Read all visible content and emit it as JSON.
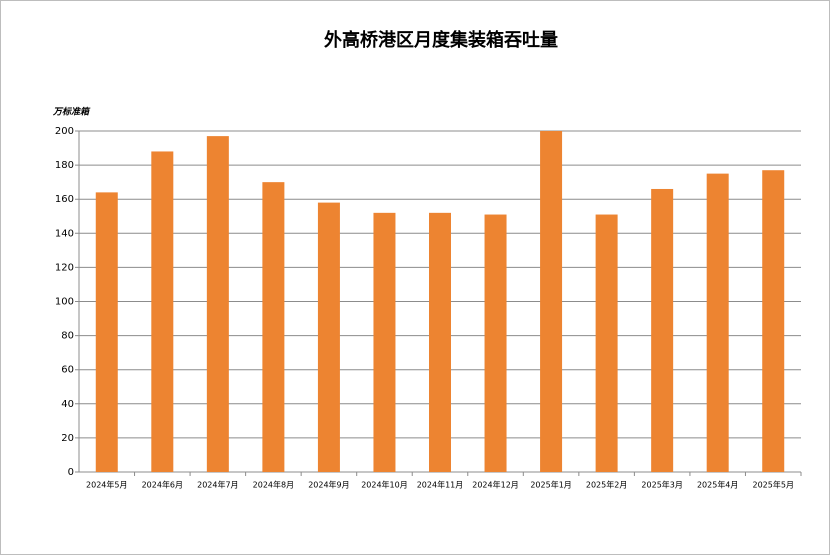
{
  "chart_data": {
    "type": "bar",
    "title": "外高桥港区月度集装箱吞吐量",
    "y_label": "万标准箱",
    "categories": [
      "2024年5月",
      "2024年6月",
      "2024年7月",
      "2024年8月",
      "2024年9月",
      "2024年10月",
      "2024年11月",
      "2024年12月",
      "2025年1月",
      "2025年2月",
      "2025年3月",
      "2025年4月",
      "2025年5月"
    ],
    "values": [
      164,
      188,
      197,
      170,
      158,
      152,
      152,
      151,
      200,
      151,
      166,
      175,
      177
    ],
    "color": "#ed8431",
    "ylim": [
      0,
      200
    ],
    "yticks": [
      0,
      20,
      40,
      60,
      80,
      100,
      120,
      140,
      160,
      180,
      200
    ],
    "grid": true
  }
}
